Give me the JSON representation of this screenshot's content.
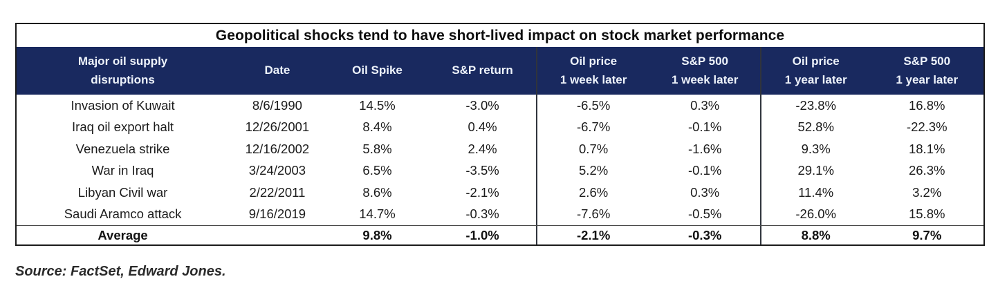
{
  "title": "Geopolitical shocks tend to have short-lived impact on stock market performance",
  "source": "Source: FactSet, Edward Jones.",
  "colors": {
    "header_bg": "#19295f",
    "header_text": "#eef3fb",
    "border": "#1a1a1a"
  },
  "header": [
    {
      "line1": "Major oil supply",
      "line2": "disruptions"
    },
    {
      "line1": "Date",
      "line2": ""
    },
    {
      "line1": "Oil Spike",
      "line2": ""
    },
    {
      "line1": "S&P return",
      "line2": ""
    },
    {
      "line1": "Oil price",
      "line2": "1 week later"
    },
    {
      "line1": "S&P 500",
      "line2": "1 week later"
    },
    {
      "line1": "Oil price",
      "line2": "1 year later"
    },
    {
      "line1": "S&P 500",
      "line2": "1 year later"
    }
  ],
  "table": {
    "rows": [
      {
        "event": "Invasion of Kuwait",
        "date": "8/6/1990",
        "oil_spike": "14.5%",
        "sp_return": "-3.0%",
        "oil_1w": "-6.5%",
        "sp_1w": "0.3%",
        "oil_1y": "-23.8%",
        "sp_1y": "16.8%"
      },
      {
        "event": "Iraq oil export halt",
        "date": "12/26/2001",
        "oil_spike": "8.4%",
        "sp_return": "0.4%",
        "oil_1w": "-6.7%",
        "sp_1w": "-0.1%",
        "oil_1y": "52.8%",
        "sp_1y": "-22.3%"
      },
      {
        "event": "Venezuela strike",
        "date": "12/16/2002",
        "oil_spike": "5.8%",
        "sp_return": "2.4%",
        "oil_1w": "0.7%",
        "sp_1w": "-1.6%",
        "oil_1y": "9.3%",
        "sp_1y": "18.1%"
      },
      {
        "event": "War in Iraq",
        "date": "3/24/2003",
        "oil_spike": "6.5%",
        "sp_return": "-3.5%",
        "oil_1w": "5.2%",
        "sp_1w": "-0.1%",
        "oil_1y": "29.1%",
        "sp_1y": "26.3%"
      },
      {
        "event": "Libyan Civil war",
        "date": "2/22/2011",
        "oil_spike": "8.6%",
        "sp_return": "-2.1%",
        "oil_1w": "2.6%",
        "sp_1w": "0.3%",
        "oil_1y": "11.4%",
        "sp_1y": "3.2%"
      },
      {
        "event": "Saudi Aramco attack",
        "date": "9/16/2019",
        "oil_spike": "14.7%",
        "sp_return": "-0.3%",
        "oil_1w": "-7.6%",
        "sp_1w": "-0.5%",
        "oil_1y": "-26.0%",
        "sp_1y": "15.8%"
      }
    ],
    "average": {
      "label": "Average",
      "date": "",
      "oil_spike": "9.8%",
      "sp_return": "-1.0%",
      "oil_1w": "-2.1%",
      "sp_1w": "-0.3%",
      "oil_1y": "8.8%",
      "sp_1y": "9.7%"
    }
  },
  "chart_data": {
    "type": "table",
    "title": "Geopolitical shocks tend to have short-lived impact on stock market performance",
    "columns": [
      "Major oil supply disruptions",
      "Date",
      "Oil Spike",
      "S&P return",
      "Oil price 1 week later",
      "S&P 500 1 week later",
      "Oil price 1 year later",
      "S&P 500 1 year later"
    ],
    "rows": [
      [
        "Invasion of Kuwait",
        "8/6/1990",
        14.5,
        -3.0,
        -6.5,
        0.3,
        -23.8,
        16.8
      ],
      [
        "Iraq oil export halt",
        "12/26/2001",
        8.4,
        0.4,
        -6.7,
        -0.1,
        52.8,
        -22.3
      ],
      [
        "Venezuela strike",
        "12/16/2002",
        5.8,
        2.4,
        0.7,
        -1.6,
        9.3,
        18.1
      ],
      [
        "War in Iraq",
        "3/24/2003",
        6.5,
        -3.5,
        5.2,
        -0.1,
        29.1,
        26.3
      ],
      [
        "Libyan Civil war",
        "2/22/2011",
        8.6,
        -2.1,
        2.6,
        0.3,
        11.4,
        3.2
      ],
      [
        "Saudi Aramco attack",
        "9/16/2019",
        14.7,
        -0.3,
        -7.6,
        -0.5,
        -26.0,
        15.8
      ]
    ],
    "average_row": [
      "Average",
      "",
      9.8,
      -1.0,
      -2.1,
      -0.3,
      8.8,
      9.7
    ],
    "units": "percent",
    "source": "Source: FactSet, Edward Jones."
  }
}
